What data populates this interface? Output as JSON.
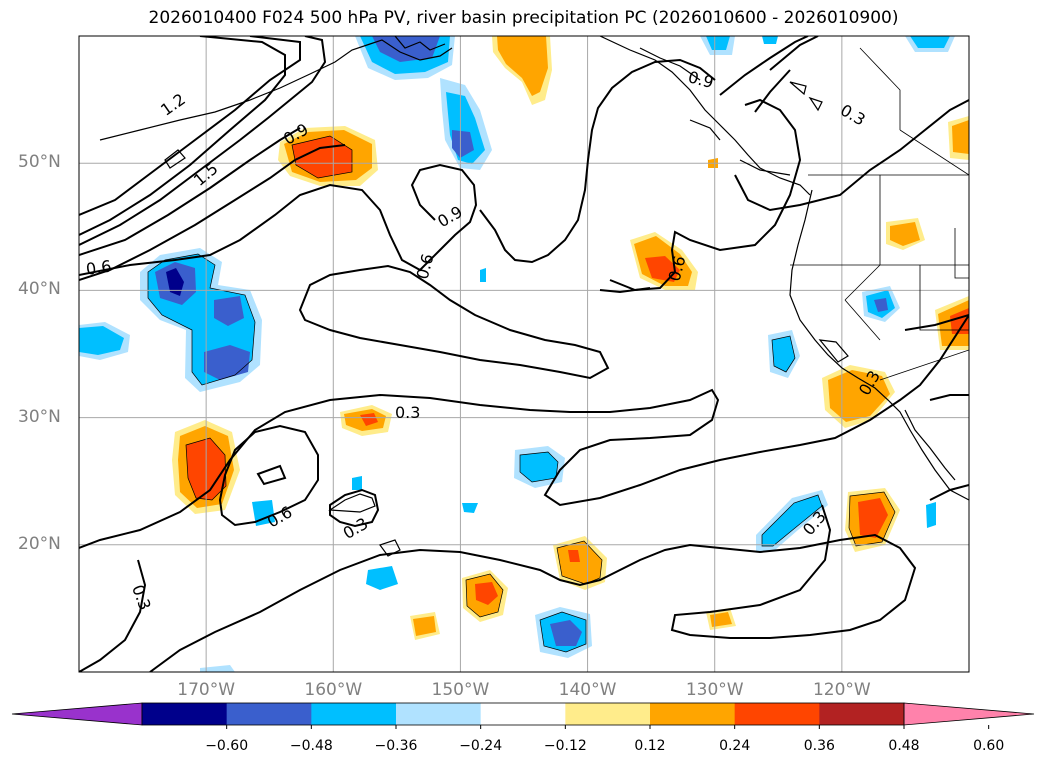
{
  "title": "2026010400 F024 500 hPa PV, river basin precipitation PC (2026010600 - 2026010900)",
  "lat_labels": [
    {
      "text": "50°N",
      "lat": 50
    },
    {
      "text": "40°N",
      "lat": 40
    },
    {
      "text": "30°N",
      "lat": 30
    },
    {
      "text": "20°N",
      "lat": 20
    }
  ],
  "lon_labels": [
    {
      "text": "170°W",
      "lon": -170
    },
    {
      "text": "160°W",
      "lon": -160
    },
    {
      "text": "150°W",
      "lon": -150
    },
    {
      "text": "140°W",
      "lon": -140
    },
    {
      "text": "130°W",
      "lon": -130
    },
    {
      "text": "120°W",
      "lon": -120
    }
  ],
  "extent": {
    "lon_min": -180,
    "lon_max": -110,
    "lat_min": 10,
    "lat_max": 60
  },
  "contour_labels": [
    "1.2",
    "1.5",
    "0.9",
    "0.6",
    "0.9",
    "0.6",
    "0.9",
    "0.3",
    "0.6",
    "0.3",
    "0.6",
    "0.3",
    "0.3",
    "0.3",
    "0.3"
  ],
  "colorbar": {
    "ticks": [
      "−0.60",
      "−0.48",
      "−0.36",
      "−0.24",
      "−0.12",
      "0.12",
      "0.24",
      "0.36",
      "0.48",
      "0.60"
    ],
    "colors": [
      "#9932cc",
      "#00008b",
      "#3a5fcd",
      "#00bfff",
      "#b0e2ff",
      "#ffffff",
      "#ffec8b",
      "#ffa500",
      "#ff4500",
      "#b22222",
      "#ff82ab"
    ]
  }
}
